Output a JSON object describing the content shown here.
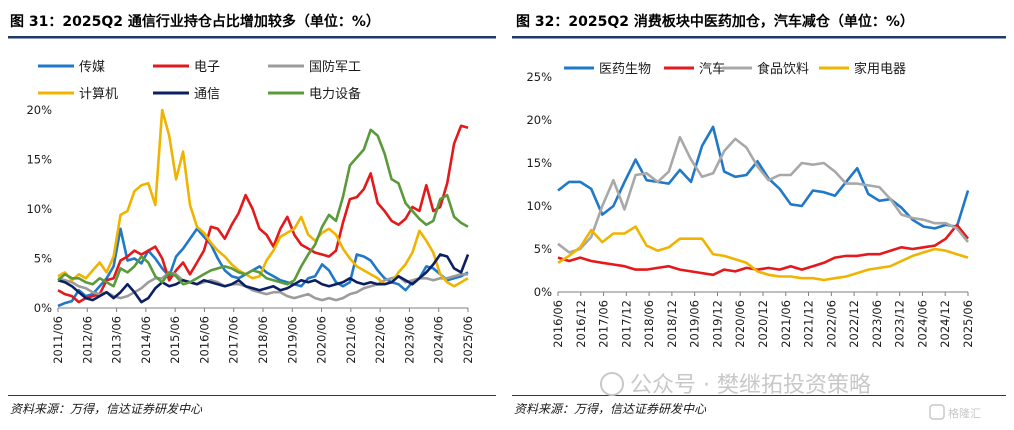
{
  "charts": [
    {
      "title": "图 31：2025Q2 通信行业持仓占比增加较多（单位：%）",
      "source": "资料来源：万得，信达证券研发中心"
    },
    {
      "title": "图 32：2025Q2 消费板块中医药加仓，汽车减仓（单位：%）",
      "source": "资料来源：万得，信达证券研发中心"
    }
  ],
  "watermark": {
    "text": "公众号 · 樊继拓投资策略",
    "logo_text": "格隆汇"
  },
  "colors": {
    "title_rule": "#1f3a68",
    "blue": "#1f78c8",
    "red": "#e3191c",
    "gray": "#9c9c9c",
    "gold": "#f0b400",
    "navy": "#0c1f63",
    "green": "#5a9a3a"
  },
  "chart_data": [
    {
      "type": "line",
      "ylim": [
        0,
        20
      ],
      "yticks": [
        "0%",
        "5%",
        "10%",
        "15%",
        "20%"
      ],
      "xticks": [
        "2011/06",
        "2012/06",
        "2013/06",
        "2014/06",
        "2015/06",
        "2016/06",
        "2017/06",
        "2018/06",
        "2019/06",
        "2020/06",
        "2021/06",
        "2022/06",
        "2023/06",
        "2024/06",
        "2025/06"
      ],
      "x_start": "2011/06",
      "x_freq": "quarterly",
      "series": [
        {
          "name": "传媒",
          "color": "#1f78c8",
          "values": [
            0.2,
            0.5,
            0.7,
            1.8,
            1.2,
            1.4,
            2.2,
            3.0,
            4.2,
            8.0,
            4.8,
            5.0,
            4.5,
            5.8,
            5.0,
            4.0,
            3.2,
            5.2,
            6.0,
            7.0,
            8.0,
            7.2,
            6.4,
            5.0,
            3.8,
            3.2,
            3.0,
            3.4,
            3.8,
            4.2,
            3.6,
            3.2,
            2.8,
            2.6,
            2.4,
            2.2,
            3.0,
            3.2,
            4.4,
            3.8,
            2.6,
            2.2,
            2.6,
            5.4,
            5.2,
            4.8,
            3.8,
            3.0,
            2.6,
            2.4,
            1.8,
            2.6,
            3.0,
            4.2,
            4.0,
            3.4,
            2.8,
            3.0,
            3.2,
            3.6
          ]
        },
        {
          "name": "电子",
          "color": "#e3191c",
          "values": [
            1.8,
            1.4,
            1.2,
            0.6,
            1.0,
            1.2,
            1.4,
            2.8,
            3.0,
            4.8,
            5.2,
            5.8,
            5.4,
            5.8,
            6.2,
            5.0,
            2.8,
            3.8,
            4.6,
            3.4,
            4.6,
            5.8,
            8.2,
            8.0,
            7.0,
            8.4,
            9.6,
            11.4,
            10.0,
            8.0,
            7.4,
            6.2,
            8.0,
            9.2,
            7.4,
            6.4,
            6.0,
            5.6,
            5.4,
            5.2,
            5.8,
            8.6,
            11.0,
            11.2,
            12.0,
            13.6,
            10.6,
            9.8,
            8.8,
            8.4,
            9.0,
            10.2,
            9.8,
            12.4,
            9.8,
            10.2,
            12.6,
            16.6,
            18.4,
            18.2
          ]
        },
        {
          "name": "国防军工",
          "color": "#9c9c9c",
          "values": [
            3.0,
            2.8,
            2.6,
            2.2,
            2.0,
            1.6,
            1.4,
            1.6,
            1.2,
            1.0,
            1.2,
            1.6,
            2.0,
            2.6,
            3.0,
            3.0,
            3.6,
            3.4,
            2.8,
            2.6,
            2.4,
            2.6,
            2.8,
            2.6,
            2.2,
            2.4,
            2.4,
            2.2,
            1.8,
            1.6,
            1.4,
            1.6,
            1.6,
            1.2,
            1.0,
            1.2,
            1.4,
            1.0,
            0.8,
            1.0,
            0.8,
            1.0,
            1.4,
            1.6,
            2.0,
            2.2,
            2.4,
            2.8,
            3.0,
            3.2,
            2.6,
            2.8,
            3.0,
            3.0,
            2.8,
            3.0,
            3.0,
            3.2,
            3.4,
            3.4
          ]
        },
        {
          "name": "计算机",
          "color": "#f0b400",
          "values": [
            3.2,
            3.6,
            2.8,
            3.4,
            3.0,
            3.8,
            4.6,
            3.6,
            5.2,
            9.4,
            9.8,
            11.8,
            12.4,
            12.6,
            10.4,
            20.0,
            17.4,
            13.0,
            15.8,
            10.4,
            8.2,
            7.6,
            6.6,
            5.8,
            5.2,
            4.4,
            3.8,
            3.4,
            3.0,
            3.2,
            4.8,
            5.8,
            7.2,
            7.6,
            8.0,
            9.2,
            7.4,
            6.8,
            7.6,
            8.0,
            7.4,
            6.0,
            5.0,
            4.2,
            3.8,
            3.4,
            3.0,
            2.4,
            2.6,
            3.6,
            4.4,
            5.6,
            7.8,
            6.8,
            5.6,
            3.4,
            2.6,
            2.2,
            2.6,
            3.0
          ]
        },
        {
          "name": "通信",
          "color": "#0c1f63",
          "values": [
            2.8,
            2.6,
            2.2,
            1.6,
            1.0,
            0.8,
            1.2,
            1.6,
            1.0,
            1.6,
            2.4,
            1.6,
            0.6,
            1.0,
            2.0,
            2.6,
            2.2,
            2.4,
            2.8,
            2.6,
            2.4,
            2.8,
            2.6,
            2.4,
            2.2,
            2.4,
            2.8,
            2.2,
            2.0,
            1.8,
            2.0,
            2.2,
            1.8,
            2.0,
            2.4,
            2.8,
            2.6,
            2.8,
            2.4,
            2.2,
            2.4,
            2.6,
            3.0,
            2.6,
            2.4,
            2.6,
            2.4,
            2.4,
            2.6,
            3.2,
            2.8,
            2.4,
            3.0,
            3.6,
            4.4,
            5.4,
            5.2,
            4.0,
            3.6,
            5.4
          ]
        },
        {
          "name": "电力设备",
          "color": "#5a9a3a",
          "values": [
            2.8,
            3.4,
            3.0,
            3.0,
            2.6,
            2.4,
            3.0,
            2.6,
            2.2,
            4.0,
            3.6,
            4.2,
            5.2,
            4.6,
            3.2,
            2.6,
            3.6,
            3.2,
            2.4,
            2.6,
            3.0,
            3.4,
            3.8,
            4.0,
            4.2,
            4.0,
            3.6,
            3.4,
            3.8,
            3.6,
            3.0,
            2.8,
            2.6,
            2.4,
            2.8,
            4.2,
            5.4,
            6.4,
            8.2,
            9.4,
            8.8,
            11.2,
            14.4,
            15.2,
            16.0,
            18.0,
            17.4,
            15.6,
            13.0,
            12.6,
            10.6,
            9.8,
            9.0,
            8.4,
            8.8,
            11.0,
            11.4,
            9.2,
            8.6,
            8.2
          ]
        }
      ]
    },
    {
      "type": "line",
      "ylim": [
        0,
        25
      ],
      "yticks": [
        "0%",
        "5%",
        "10%",
        "15%",
        "20%",
        "25%"
      ],
      "xticks": [
        "2016/06",
        "2016/12",
        "2017/06",
        "2017/12",
        "2018/06",
        "2018/12",
        "2019/06",
        "2019/12",
        "2020/06",
        "2020/12",
        "2021/06",
        "2021/12",
        "2022/06",
        "2022/12",
        "2023/06",
        "2023/12",
        "2024/06",
        "2024/12",
        "2025/06"
      ],
      "x_start": "2016/06",
      "x_freq": "quarterly",
      "series": [
        {
          "name": "医药生物",
          "color": "#1f78c8",
          "values": [
            11.8,
            12.8,
            12.8,
            12.0,
            9.0,
            10.0,
            12.8,
            15.4,
            13.0,
            12.8,
            12.6,
            14.2,
            12.8,
            17.0,
            19.2,
            14.0,
            13.4,
            13.6,
            15.2,
            13.2,
            12.0,
            10.2,
            10.0,
            11.8,
            11.6,
            11.2,
            12.8,
            14.4,
            11.4,
            10.6,
            10.8,
            9.8,
            8.4,
            7.6,
            7.4,
            7.8,
            7.6,
            11.8
          ]
        },
        {
          "name": "汽车",
          "color": "#e3191c",
          "values": [
            4.0,
            3.6,
            4.0,
            3.6,
            3.4,
            3.2,
            3.0,
            2.6,
            2.6,
            2.8,
            3.0,
            2.6,
            2.4,
            2.2,
            2.0,
            2.6,
            2.4,
            2.8,
            2.6,
            2.8,
            2.6,
            3.0,
            2.6,
            3.0,
            3.4,
            4.0,
            4.2,
            4.2,
            4.4,
            4.4,
            4.8,
            5.2,
            5.0,
            5.2,
            5.4,
            6.2,
            7.8,
            6.2
          ]
        },
        {
          "name": "食品饮料",
          "color": "#a8a8a8",
          "values": [
            5.6,
            4.6,
            5.0,
            6.4,
            10.0,
            13.0,
            9.6,
            13.6,
            13.8,
            12.8,
            14.0,
            18.0,
            15.4,
            13.4,
            13.8,
            16.4,
            17.8,
            16.8,
            14.6,
            13.0,
            13.6,
            13.6,
            15.0,
            14.8,
            15.0,
            14.0,
            12.6,
            12.6,
            12.4,
            12.2,
            10.8,
            9.0,
            8.6,
            8.4,
            8.0,
            8.0,
            7.4,
            5.8
          ]
        },
        {
          "name": "家用电器",
          "color": "#f0b400",
          "values": [
            3.4,
            4.2,
            5.2,
            7.2,
            5.8,
            6.8,
            6.8,
            7.6,
            5.4,
            4.8,
            5.2,
            6.2,
            6.2,
            6.2,
            4.4,
            4.2,
            3.8,
            3.4,
            2.4,
            2.0,
            1.8,
            1.8,
            1.6,
            1.6,
            1.4,
            1.6,
            1.8,
            2.2,
            2.6,
            2.8,
            3.0,
            3.6,
            4.2,
            4.6,
            5.0,
            4.8,
            4.4,
            4.0
          ]
        }
      ]
    }
  ]
}
